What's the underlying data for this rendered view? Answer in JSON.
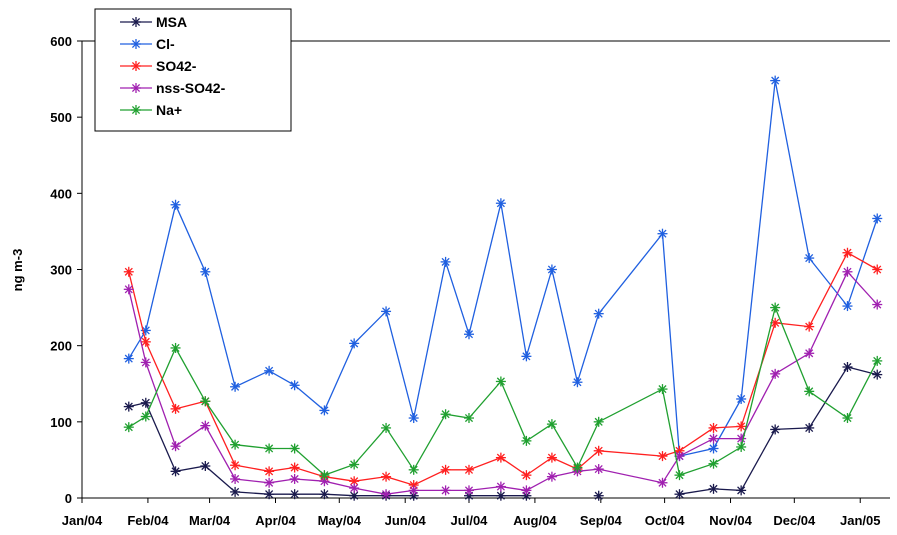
{
  "chart_data": {
    "type": "line",
    "ylabel": "ng m-3",
    "xlabel": "",
    "title": "",
    "ylim": [
      0,
      600
    ],
    "yticks": [
      0,
      100,
      200,
      300,
      400,
      500,
      600
    ],
    "xlim": [
      "2004-01-01",
      "2005-01-15"
    ],
    "xticks": [
      {
        "label": "Jan/04",
        "date": "2004-01-01"
      },
      {
        "label": "Feb/04",
        "date": "2004-02-01"
      },
      {
        "label": "Mar/04",
        "date": "2004-03-01"
      },
      {
        "label": "Apr/04",
        "date": "2004-04-01"
      },
      {
        "label": "May/04",
        "date": "2004-05-01"
      },
      {
        "label": "Jun/04",
        "date": "2004-06-01"
      },
      {
        "label": "Jul/04",
        "date": "2004-07-01"
      },
      {
        "label": "Aug/04",
        "date": "2004-08-01"
      },
      {
        "label": "Sep/04",
        "date": "2004-09-01"
      },
      {
        "label": "Oct/04",
        "date": "2004-10-01"
      },
      {
        "label": "Nov/04",
        "date": "2004-11-01"
      },
      {
        "label": "Dec/04",
        "date": "2004-12-01"
      },
      {
        "label": "Jan/05",
        "date": "2005-01-01"
      }
    ],
    "grid": false,
    "legend_position": "top-left",
    "x": [
      "2004-01-23",
      "2004-01-31",
      "2004-02-14",
      "2004-02-28",
      "2004-03-13",
      "2004-03-29",
      "2004-04-10",
      "2004-04-24",
      "2004-05-08",
      "2004-05-23",
      "2004-06-05",
      "2004-06-20",
      "2004-07-01",
      "2004-07-16",
      "2004-07-28",
      "2004-08-09",
      "2004-08-21",
      "2004-08-31",
      "2004-09-30",
      "2004-10-08",
      "2004-10-24",
      "2004-11-06",
      "2004-11-22",
      "2004-12-08",
      "2004-12-26",
      "2005-01-09"
    ],
    "series": [
      {
        "name": "MSA",
        "color": "#1a1a4d",
        "values": [
          120,
          125,
          35,
          42,
          8,
          5,
          5,
          5,
          3,
          3,
          3,
          null,
          3,
          3,
          3,
          null,
          null,
          3,
          null,
          5,
          12,
          10,
          90,
          92,
          172,
          162
        ]
      },
      {
        "name": "Cl-",
        "color": "#2060e0",
        "values": [
          183,
          220,
          385,
          297,
          146,
          167,
          148,
          115,
          203,
          245,
          105,
          310,
          215,
          387,
          186,
          300,
          152,
          242,
          347,
          55,
          65,
          130,
          548,
          315,
          252,
          367
        ]
      },
      {
        "name": "SO42-",
        "color": "#ff2020",
        "values": [
          297,
          205,
          117,
          127,
          43,
          35,
          40,
          28,
          22,
          28,
          17,
          37,
          37,
          53,
          30,
          53,
          38,
          62,
          55,
          62,
          92,
          94,
          230,
          225,
          322,
          300
        ]
      },
      {
        "name": "nss-SO42-",
        "color": "#a020b0",
        "values": [
          274,
          178,
          68,
          95,
          25,
          20,
          25,
          22,
          13,
          5,
          10,
          10,
          10,
          15,
          10,
          28,
          35,
          38,
          20,
          55,
          78,
          78,
          163,
          190,
          297,
          254
        ]
      },
      {
        "name": "Na+",
        "color": "#20a030",
        "values": [
          93,
          107,
          197,
          127,
          70,
          65,
          65,
          30,
          44,
          92,
          37,
          110,
          105,
          153,
          75,
          97,
          40,
          100,
          143,
          30,
          45,
          67,
          250,
          140,
          105,
          180
        ]
      }
    ]
  }
}
